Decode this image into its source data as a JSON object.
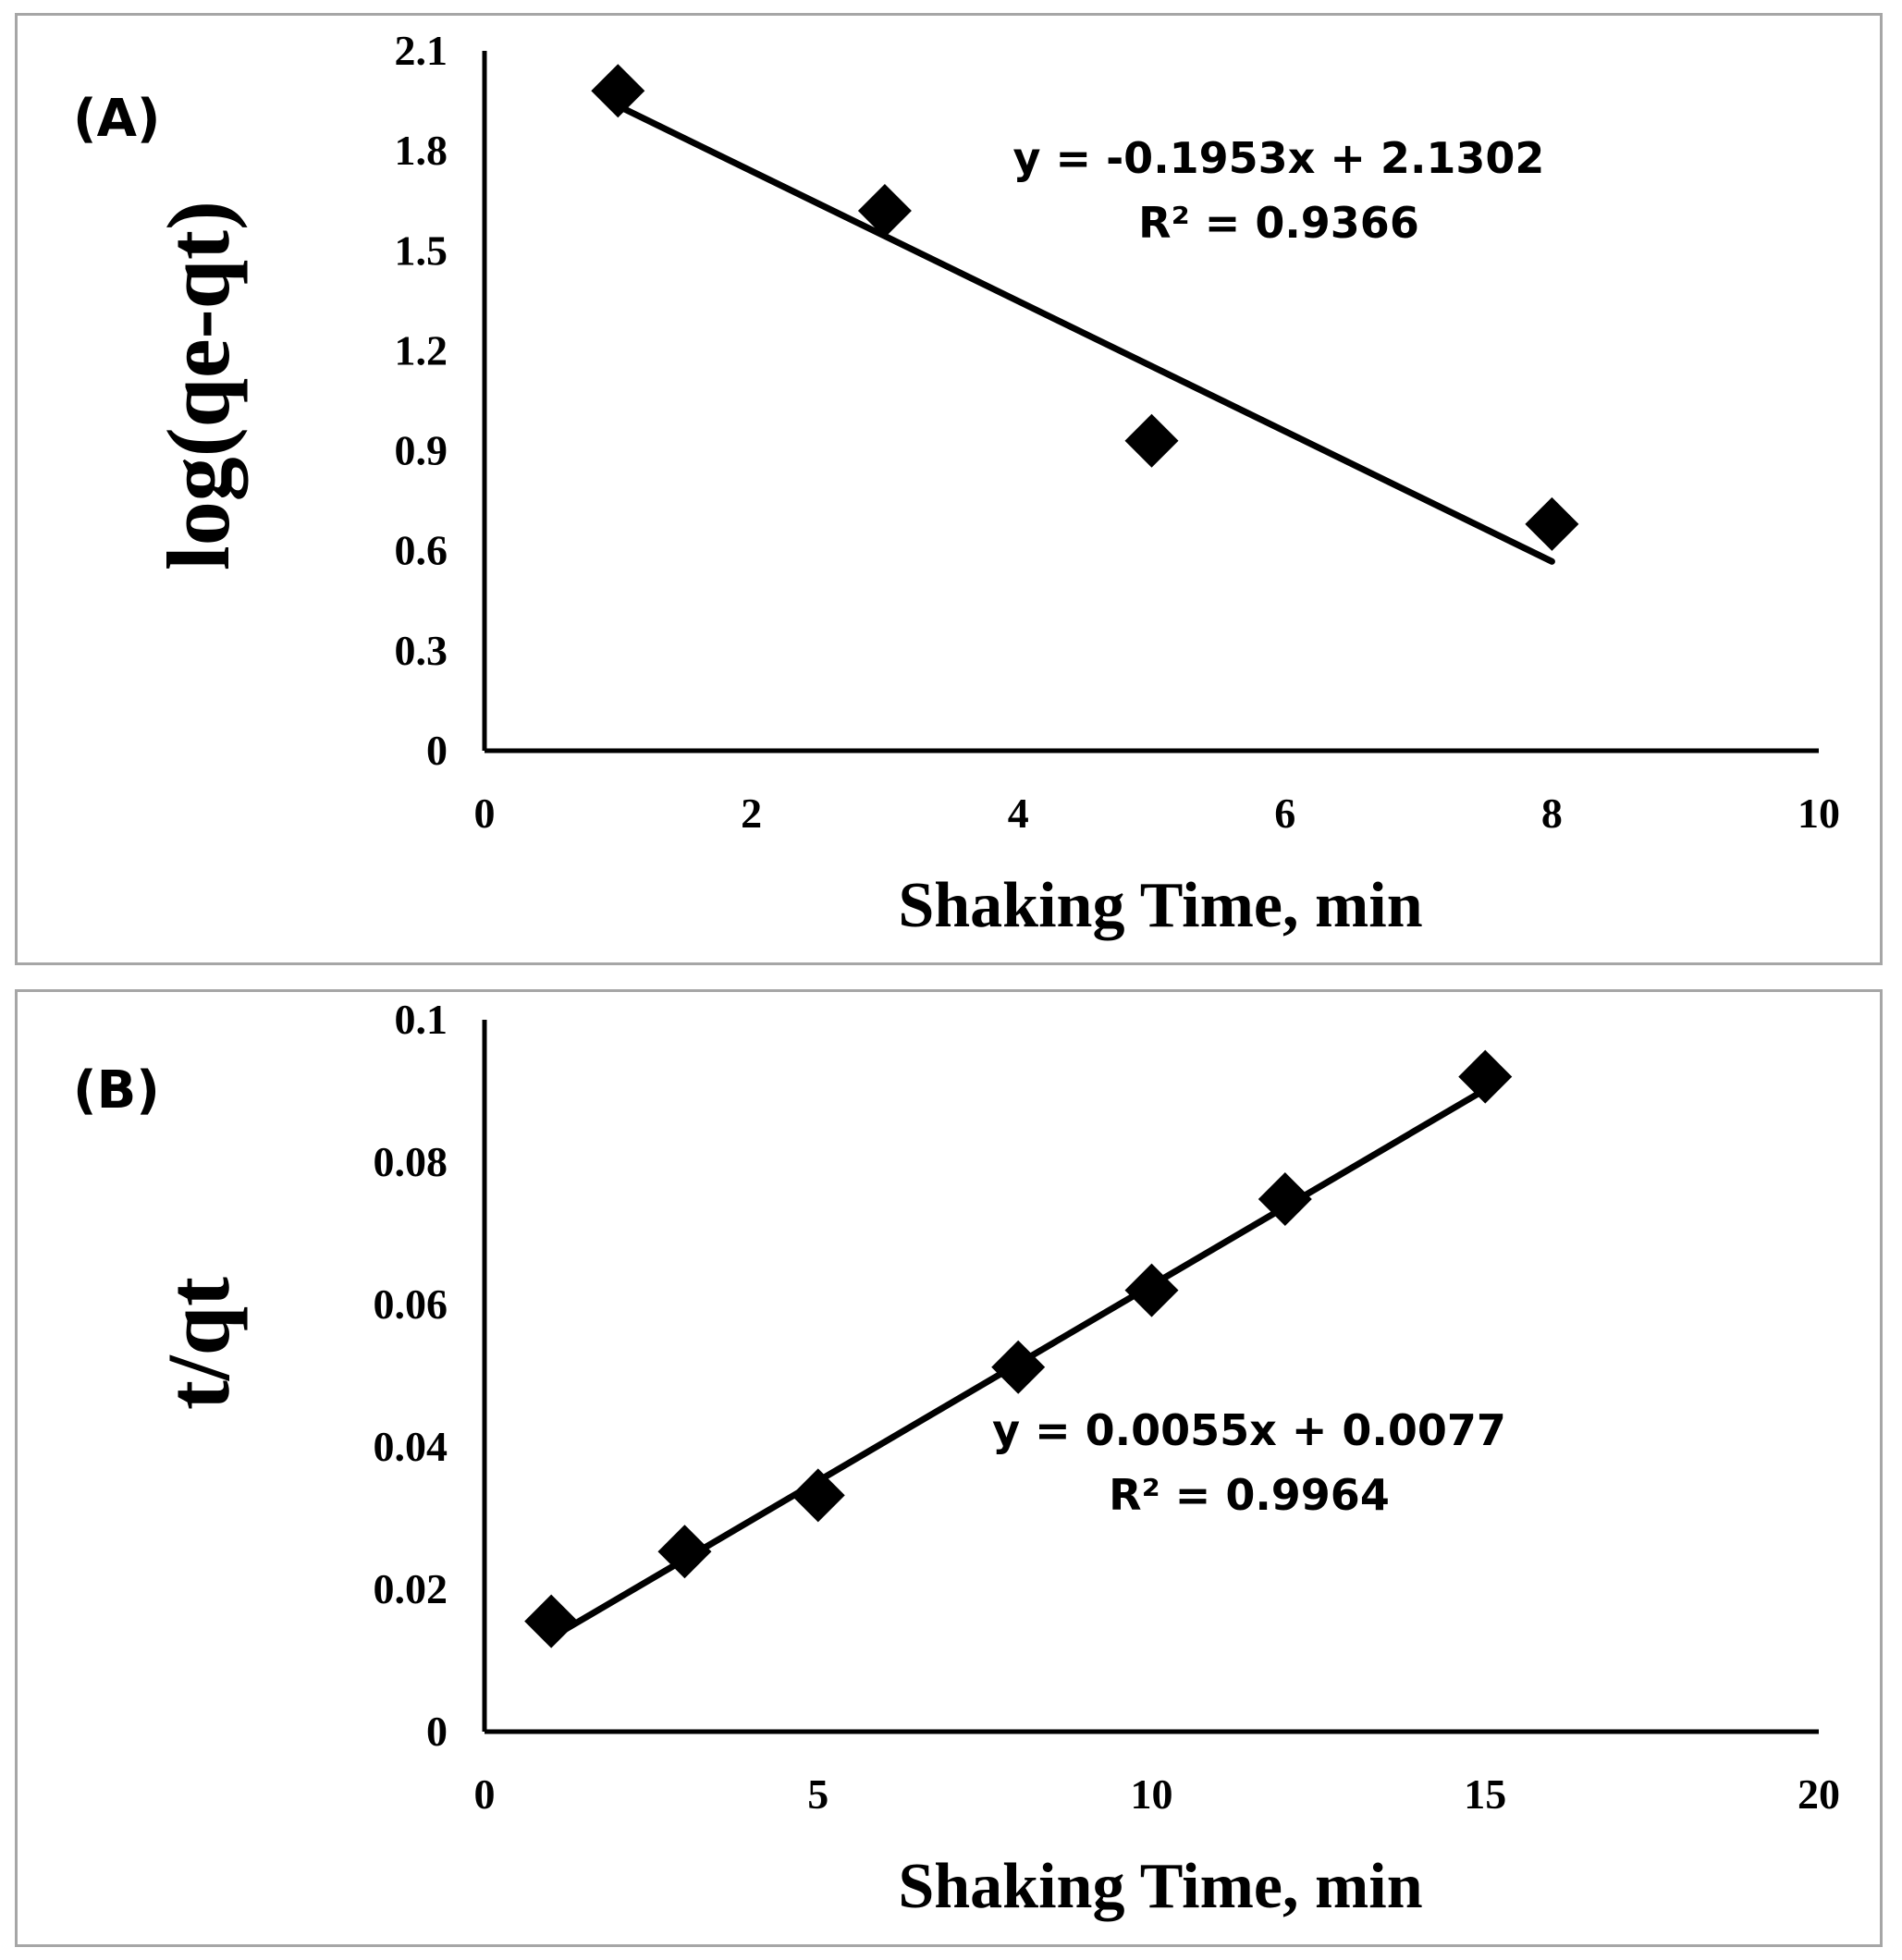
{
  "chart_data": [
    {
      "type": "scatter",
      "panel_label": "(A)",
      "title": "",
      "xlabel": "Shaking Time, min",
      "ylabel": "log(qe-qt)",
      "xlim": [
        0,
        10
      ],
      "ylim": [
        0,
        2.1
      ],
      "xticks": [
        "0",
        "2",
        "4",
        "6",
        "8",
        "10"
      ],
      "yticks": [
        "0",
        "0.3",
        "0.6",
        "0.9",
        "1.2",
        "1.5",
        "1.8",
        "2.1"
      ],
      "x": [
        1,
        3,
        5,
        8
      ],
      "y": [
        1.98,
        1.62,
        0.93,
        0.68
      ],
      "trendline": {
        "slope": -0.1953,
        "intercept": 2.1302,
        "x_range": [
          1,
          8
        ]
      },
      "equation": "y = -0.1953x + 2.1302",
      "r_squared": "R² = 0.9366",
      "marker": "diamond",
      "color": "#000000"
    },
    {
      "type": "scatter",
      "panel_label": "(B)",
      "title": "",
      "xlabel": "Shaking Time, min",
      "ylabel": "t/qt",
      "xlim": [
        0,
        20
      ],
      "ylim": [
        0,
        0.1
      ],
      "xticks": [
        "0",
        "5",
        "10",
        "15",
        "20"
      ],
      "yticks": [
        "0",
        "0.02",
        "0.04",
        "0.06",
        "0.08",
        "0.1"
      ],
      "x": [
        1,
        3,
        5,
        8,
        10,
        12,
        15
      ],
      "y": [
        0.0155,
        0.0253,
        0.0332,
        0.0512,
        0.062,
        0.0748,
        0.092
      ],
      "trendline": {
        "slope": 0.0055,
        "intercept": 0.0077,
        "x_range": [
          1,
          15
        ]
      },
      "equation": "y = 0.0055x + 0.0077",
      "r_squared": "R² = 0.9964",
      "marker": "diamond",
      "color": "#000000"
    }
  ]
}
